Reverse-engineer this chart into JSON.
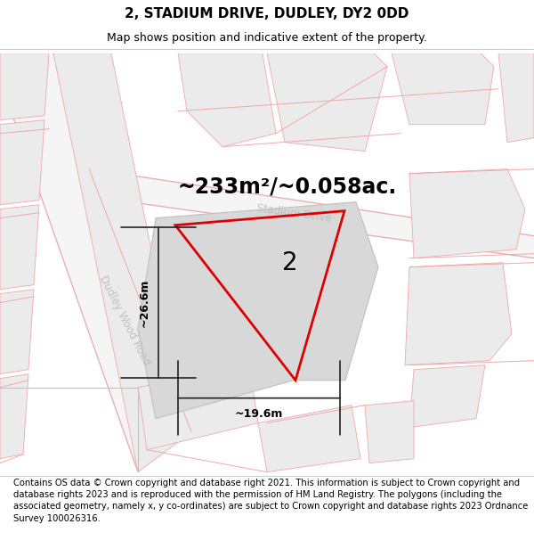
{
  "title": "2, STADIUM DRIVE, DUDLEY, DY2 0DD",
  "subtitle": "Map shows position and indicative extent of the property.",
  "footer": "Contains OS data © Crown copyright and database right 2021. This information is subject to Crown copyright and database rights 2023 and is reproduced with the permission of HM Land Registry. The polygons (including the associated geometry, namely x, y co-ordinates) are subject to Crown copyright and database rights 2023 Ordnance Survey 100026316.",
  "area_label": "~233m²/~0.058ac.",
  "number_label": "2",
  "dim_width": "~19.6m",
  "dim_height": "~26.6m",
  "road_label_1": "Dudley Wood Road",
  "road_label_2": "Stadium Drive",
  "red_line_color": "#dd0000",
  "bg_color": "#ffffff",
  "building_fill": "#ebebeb",
  "building_stroke": "#f0a8a8",
  "road_fill": "#f5f5f5",
  "road_stroke": "#e8b0b0",
  "prop_fill": "#d8d8d8",
  "prop_stroke": "#c0c0c0",
  "dim_line_color": "#222222",
  "road_text_color": "#c8c8c8",
  "title_fontsize": 11,
  "subtitle_fontsize": 9,
  "footer_fontsize": 7.2,
  "area_fontsize": 17,
  "number_fontsize": 20
}
